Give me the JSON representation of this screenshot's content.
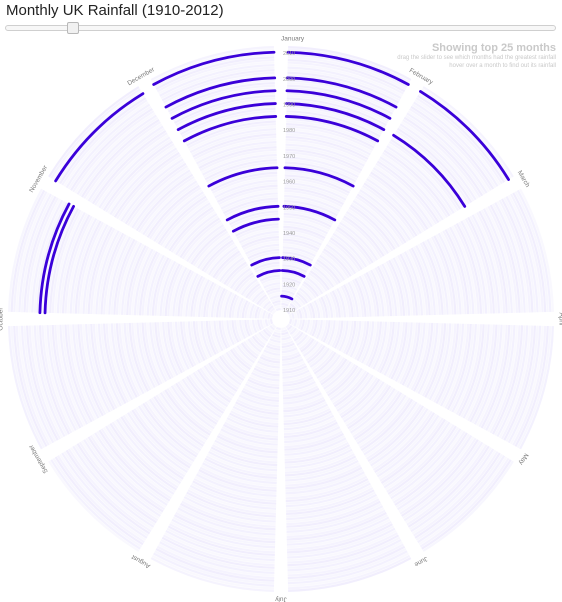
{
  "app": {
    "title": "Monthly UK Rainfall (1910-2012)",
    "info_heading": "Showing top 25 months",
    "info_line1": "drag the slider to see which months had the greatest rainfall",
    "info_line2": "hover over a month to find out its rainfall"
  },
  "slider": {
    "value": 25,
    "min": 0,
    "max": 400
  },
  "colors": {
    "highlight": "#3a00d9",
    "faint": "#eeebfd",
    "bg": "#ffffff",
    "text": "#7a7a7a"
  },
  "chart_data": {
    "type": "radial-bar",
    "year_range": [
      1910,
      2012
    ],
    "months": [
      "January",
      "February",
      "March",
      "April",
      "May",
      "June",
      "July",
      "August",
      "September",
      "October",
      "November",
      "December"
    ],
    "year_labels": [
      "2010",
      "2000",
      "1990",
      "1980",
      "1970",
      "1960",
      "1950",
      "1940",
      "1930",
      "1920",
      "1910"
    ],
    "top_n": 25,
    "highlighted": [
      {
        "month": "December",
        "year": 2010
      },
      {
        "month": "January",
        "year": 2010
      },
      {
        "month": "February",
        "year": 2010
      },
      {
        "month": "December",
        "year": 2000
      },
      {
        "month": "January",
        "year": 2000
      },
      {
        "month": "December",
        "year": 1995
      },
      {
        "month": "January",
        "year": 1995
      },
      {
        "month": "December",
        "year": 1990
      },
      {
        "month": "January",
        "year": 1990
      },
      {
        "month": "February",
        "year": 1990
      },
      {
        "month": "December",
        "year": 1985
      },
      {
        "month": "January",
        "year": 1985
      },
      {
        "month": "November",
        "year": 2009
      },
      {
        "month": "October",
        "year": 2000
      },
      {
        "month": "October",
        "year": 1998
      },
      {
        "month": "December",
        "year": 1965
      },
      {
        "month": "January",
        "year": 1965
      },
      {
        "month": "January",
        "year": 1950
      },
      {
        "month": "December",
        "year": 1950
      },
      {
        "month": "December",
        "year": 1945
      },
      {
        "month": "January",
        "year": 1930
      },
      {
        "month": "December",
        "year": 1930
      },
      {
        "month": "January",
        "year": 1925
      },
      {
        "month": "December",
        "year": 1925
      },
      {
        "month": "January",
        "year": 1915
      }
    ]
  }
}
